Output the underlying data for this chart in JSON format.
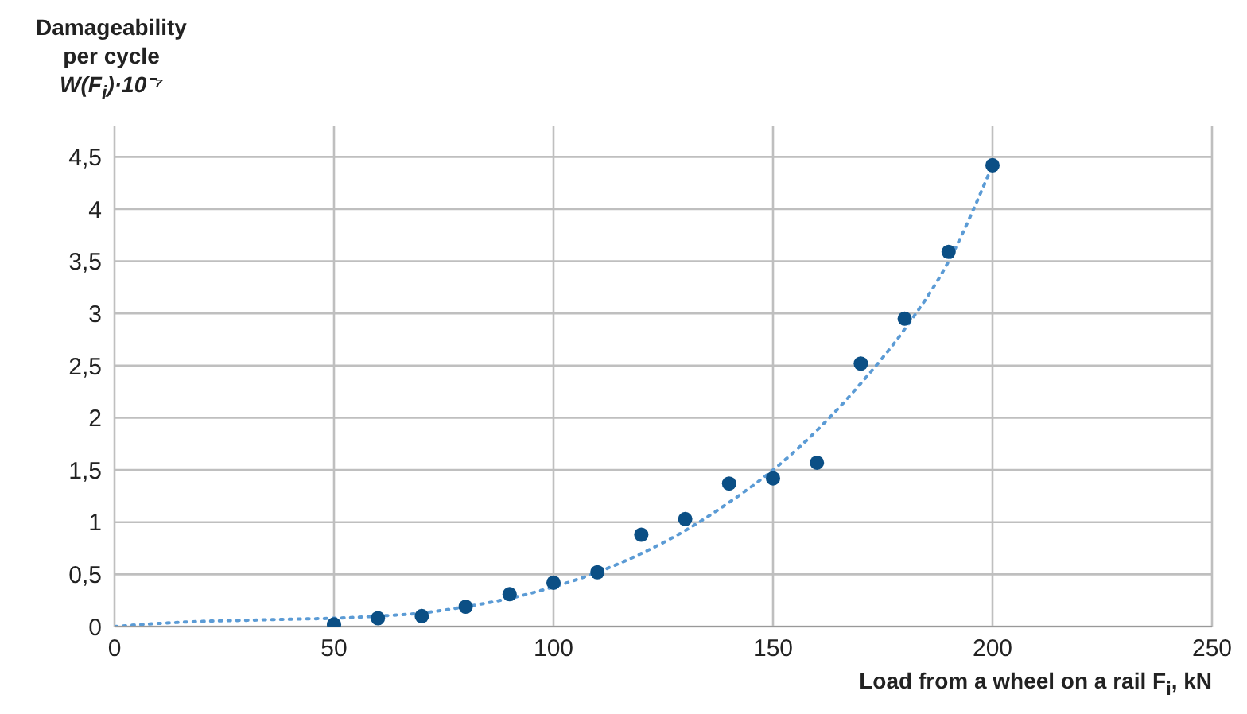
{
  "chart_data": {
    "type": "scatter",
    "ylabel": "Damageability\nper cycle\nW(F$_{i}$)·10⁻⁷",
    "xlabel": "Load from a wheel on a rail F$_{i}$, kN",
    "xlim": [
      0,
      250
    ],
    "xticks": [
      0,
      50,
      100,
      150,
      200,
      250
    ],
    "ylim": [
      0,
      4.8
    ],
    "yticks": [
      0,
      {
        "value": 0.5,
        "label": "0,5"
      },
      1,
      {
        "value": 1.5,
        "label": "1,5"
      },
      2,
      {
        "value": 2.5,
        "label": "2,5"
      },
      3,
      {
        "value": 3.5,
        "label": "3,5"
      },
      4,
      {
        "value": 4.5,
        "label": "4,5"
      }
    ],
    "grid": true,
    "legend": false,
    "series": [
      {
        "color": "#0b4f85",
        "marker": "circle",
        "x": [
          50,
          60,
          70,
          80,
          90,
          100,
          110,
          120,
          130,
          140,
          150,
          160,
          170,
          180,
          190,
          200
        ],
        "values": [
          0.02,
          0.08,
          0.1,
          0.19,
          0.31,
          0.42,
          0.52,
          0.88,
          1.03,
          1.37,
          1.42,
          1.57,
          2.52,
          2.95,
          3.59,
          4.42
        ]
      },
      {
        "type": "line",
        "color": "#5b9bd5",
        "marker": "none",
        "line_style": "dotted",
        "x": [
          0,
          10,
          20,
          30,
          40,
          50,
          60,
          70,
          80,
          90,
          100,
          110,
          120,
          130,
          140,
          150,
          160,
          170,
          180,
          190,
          200
        ],
        "values": [
          0,
          0.03,
          0.05,
          0.06,
          0.07,
          0.08,
          0.1,
          0.13,
          0.19,
          0.27,
          0.38,
          0.52,
          0.7,
          0.92,
          1.19,
          1.5,
          1.88,
          2.33,
          2.85,
          3.5,
          4.42
        ]
      }
    ]
  }
}
